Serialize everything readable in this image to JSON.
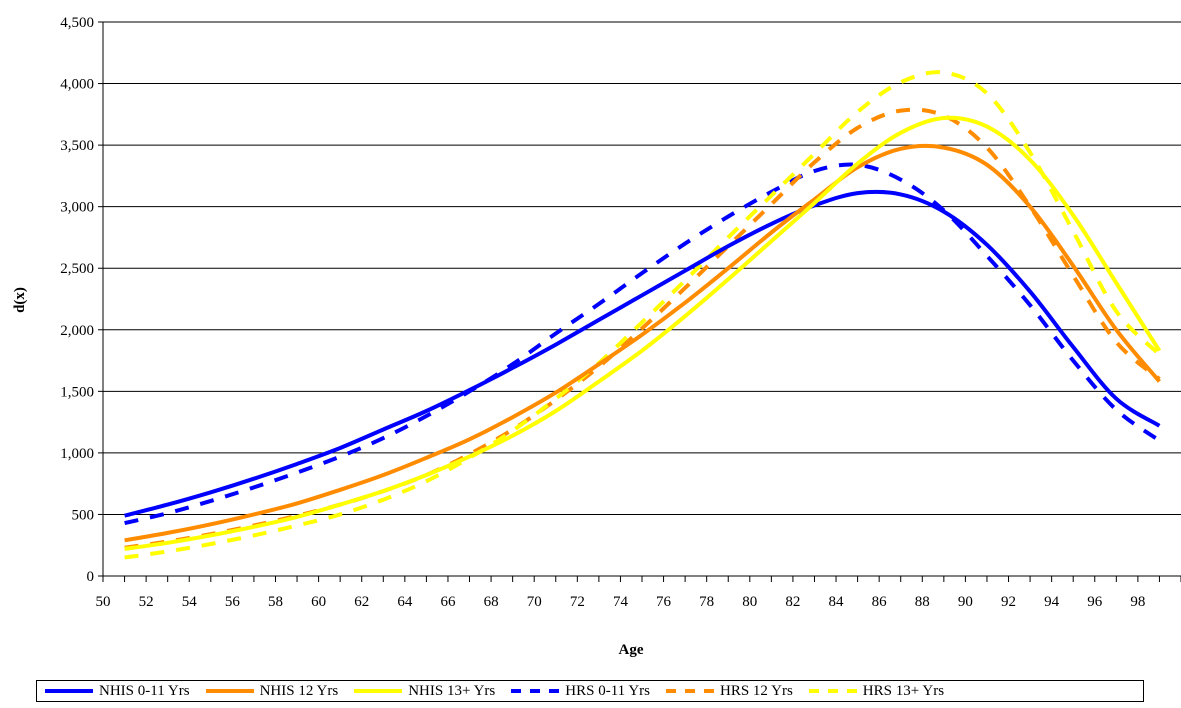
{
  "chart_data": {
    "type": "line",
    "title": "",
    "xlabel": "Age",
    "ylabel": "d(x)",
    "xlim": [
      50,
      100
    ],
    "ylim": [
      0,
      4500
    ],
    "x_ticks": [
      "50",
      "52",
      "54",
      "56",
      "58",
      "60",
      "62",
      "64",
      "66",
      "68",
      "70",
      "72",
      "74",
      "76",
      "78",
      "80",
      "82",
      "84",
      "86",
      "88",
      "90",
      "92",
      "94",
      "96",
      "98"
    ],
    "y_ticks": [
      "0",
      "500",
      "1,000",
      "1,500",
      "2,000",
      "2,500",
      "3,000",
      "3,500",
      "4,000",
      "4,500"
    ],
    "grid": "horizontal",
    "legend_position": "bottom",
    "x": [
      51,
      53,
      55,
      57,
      59,
      61,
      63,
      65,
      67,
      69,
      71,
      73,
      75,
      77,
      79,
      81,
      83,
      85,
      87,
      89,
      91,
      93,
      95,
      97,
      99
    ],
    "series": [
      {
        "name": "NHIS 0-11 Yrs",
        "color": "#0000ff",
        "style": "solid",
        "values": [
          490,
          580,
          680,
          790,
          910,
          1040,
          1190,
          1340,
          1510,
          1690,
          1880,
          2080,
          2280,
          2480,
          2680,
          2860,
          3010,
          3110,
          3100,
          2960,
          2690,
          2310,
          1860,
          1440,
          1220
        ]
      },
      {
        "name": "NHIS 12 Yrs",
        "color": "#ff8c00",
        "style": "solid",
        "values": [
          290,
          350,
          420,
          500,
          590,
          700,
          820,
          960,
          1110,
          1290,
          1490,
          1720,
          1960,
          2220,
          2500,
          2790,
          3060,
          3320,
          3470,
          3480,
          3340,
          3000,
          2520,
          2000,
          1580
        ]
      },
      {
        "name": "NHIS 13+ Yrs",
        "color": "#ffff00",
        "style": "solid",
        "values": [
          220,
          270,
          330,
          400,
          480,
          580,
          690,
          820,
          970,
          1140,
          1340,
          1580,
          1830,
          2110,
          2410,
          2720,
          3030,
          3350,
          3600,
          3720,
          3650,
          3380,
          2930,
          2380,
          1830
        ]
      },
      {
        "name": "HRS 0-11 Yrs",
        "color": "#0000ff",
        "style": "dashed",
        "values": [
          430,
          510,
          610,
          720,
          840,
          970,
          1120,
          1300,
          1500,
          1720,
          1970,
          2210,
          2460,
          2700,
          2920,
          3120,
          3290,
          3340,
          3220,
          2970,
          2600,
          2200,
          1750,
          1350,
          1100
        ]
      },
      {
        "name": "HRS 12 Yrs",
        "color": "#ff8c00",
        "style": "dashed",
        "values": [
          230,
          280,
          340,
          410,
          490,
          580,
          690,
          820,
          990,
          1190,
          1430,
          1700,
          2010,
          2340,
          2680,
          3020,
          3360,
          3640,
          3780,
          3740,
          3480,
          3000,
          2440,
          1900,
          1600
        ]
      },
      {
        "name": "HRS 13+ Yrs",
        "color": "#ffff00",
        "style": "dashed",
        "values": [
          150,
          200,
          260,
          330,
          410,
          500,
          620,
          770,
          960,
          1180,
          1440,
          1730,
          2060,
          2400,
          2750,
          3090,
          3430,
          3770,
          4010,
          4090,
          3920,
          3440,
          2800,
          2150,
          1800
        ]
      }
    ]
  }
}
